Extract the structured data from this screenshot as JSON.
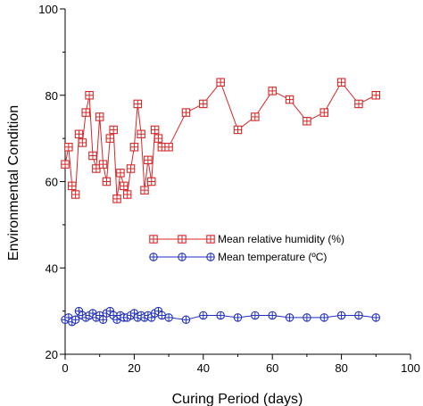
{
  "chart_data": {
    "type": "line",
    "title": "",
    "xlabel": "Curing Period (days)",
    "ylabel": "Environmental Condition",
    "xlim": [
      0,
      100
    ],
    "ylim": [
      20,
      100
    ],
    "xticks": [
      "0",
      "20",
      "40",
      "60",
      "80",
      "100"
    ],
    "yticks": [
      "20",
      "40",
      "60",
      "80",
      "100"
    ],
    "grid": false,
    "legend_position": "center-right",
    "series": [
      {
        "name": "Mean relative humidity (%)",
        "color": "#d62728",
        "marker": "square-cross",
        "x": [
          0,
          1,
          2,
          3,
          4,
          5,
          6,
          7,
          8,
          9,
          10,
          11,
          12,
          13,
          14,
          15,
          16,
          17,
          18,
          19,
          20,
          21,
          22,
          23,
          24,
          25,
          26,
          27,
          28,
          30,
          35,
          40,
          45,
          50,
          55,
          60,
          65,
          70,
          75,
          80,
          85,
          90
        ],
        "y": [
          64,
          68,
          59,
          57,
          71,
          69,
          76,
          80,
          66,
          63,
          75,
          64,
          60,
          70,
          72,
          56,
          62,
          59,
          57,
          63,
          68,
          78,
          71,
          58,
          65,
          60,
          72,
          70,
          68,
          68,
          76,
          78,
          83,
          72,
          75,
          81,
          79,
          74,
          76,
          83,
          78,
          80
        ]
      },
      {
        "name": "Mean temperature (ºC)",
        "color": "#1f2fbf",
        "marker": "circle-cross",
        "x": [
          0,
          1,
          2,
          3,
          4,
          5,
          6,
          7,
          8,
          9,
          10,
          11,
          12,
          13,
          14,
          15,
          16,
          17,
          18,
          19,
          20,
          21,
          22,
          23,
          24,
          25,
          26,
          27,
          28,
          30,
          35,
          40,
          45,
          50,
          55,
          60,
          65,
          70,
          75,
          80,
          85,
          90
        ],
        "y": [
          28,
          28.5,
          27.5,
          28,
          30,
          29,
          28.5,
          29,
          29.5,
          28.5,
          29,
          28,
          29.5,
          30,
          29,
          28,
          29,
          28.5,
          28.5,
          29,
          29.5,
          28.5,
          29,
          28.5,
          29,
          28.5,
          29.5,
          30,
          29,
          28.5,
          28,
          29,
          29,
          28.5,
          29,
          29,
          28.5,
          28.5,
          28.5,
          29,
          29,
          28.5
        ]
      }
    ]
  }
}
